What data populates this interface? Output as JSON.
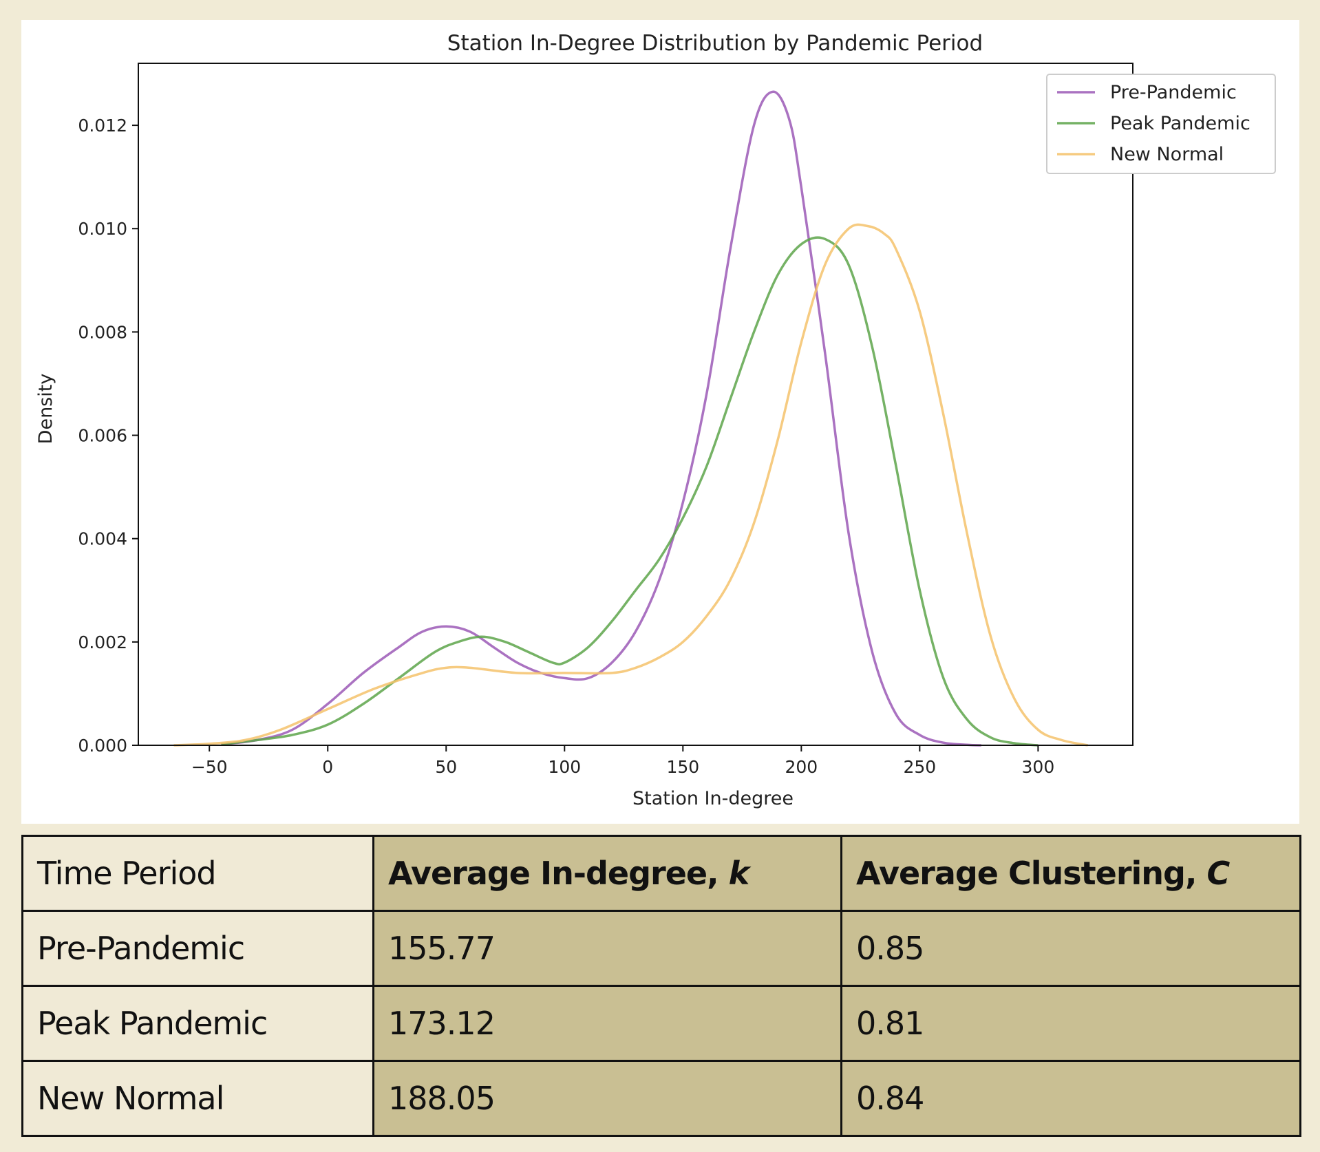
{
  "chart_data": {
    "type": "line",
    "title": "Station In-Degree Distribution by Pandemic Period",
    "xlabel": "Station In-degree",
    "ylabel": "Density",
    "xlim": [
      -80,
      340
    ],
    "ylim": [
      0,
      0.0132
    ],
    "xticks": [
      -50,
      0,
      50,
      100,
      150,
      200,
      250,
      300
    ],
    "xtick_labels": [
      "−50",
      "0",
      "50",
      "100",
      "150",
      "200",
      "250",
      "300"
    ],
    "yticks": [
      0,
      0.002,
      0.004,
      0.006,
      0.008,
      0.01,
      0.012
    ],
    "ytick_labels": [
      "0.000",
      "0.002",
      "0.004",
      "0.006",
      "0.008",
      "0.010",
      "0.012"
    ],
    "grid": false,
    "legend": "top-right",
    "series": [
      {
        "name": "Pre-Pandemic",
        "color": "#9b59b6",
        "x": [
          -45,
          -30,
          -15,
          0,
          15,
          30,
          40,
          50,
          60,
          70,
          80,
          90,
          100,
          110,
          120,
          130,
          140,
          150,
          160,
          170,
          180,
          188,
          195,
          200,
          210,
          220,
          230,
          240,
          250,
          260,
          270,
          276
        ],
        "y": [
          2e-05,
          0.0001,
          0.0003,
          0.0008,
          0.0014,
          0.0019,
          0.0022,
          0.0023,
          0.0022,
          0.0019,
          0.0016,
          0.0014,
          0.0013,
          0.0013,
          0.0016,
          0.0022,
          0.0032,
          0.0047,
          0.0068,
          0.0096,
          0.012,
          0.01265,
          0.0121,
          0.0108,
          0.0076,
          0.0041,
          0.0018,
          0.0006,
          0.0002,
          5e-05,
          1e-05,
          0.0
        ]
      },
      {
        "name": "Peak Pandemic",
        "color": "#5da54a",
        "x": [
          -45,
          -30,
          -15,
          0,
          15,
          30,
          45,
          55,
          65,
          75,
          85,
          95,
          100,
          110,
          120,
          130,
          140,
          150,
          160,
          170,
          180,
          190,
          200,
          210,
          220,
          230,
          240,
          250,
          260,
          270,
          280,
          290,
          300
        ],
        "y": [
          2e-05,
          0.0001,
          0.0002,
          0.0004,
          0.0008,
          0.0013,
          0.0018,
          0.002,
          0.0021,
          0.002,
          0.0018,
          0.0016,
          0.0016,
          0.0019,
          0.0024,
          0.003,
          0.0036,
          0.0044,
          0.0054,
          0.0067,
          0.008,
          0.0091,
          0.0097,
          0.0098,
          0.0093,
          0.0077,
          0.0054,
          0.003,
          0.0013,
          0.0005,
          0.00015,
          4e-05,
          0.0
        ]
      },
      {
        "name": "New Normal",
        "color": "#f5c26b",
        "x": [
          -65,
          -50,
          -35,
          -20,
          0,
          20,
          40,
          50,
          60,
          80,
          100,
          120,
          130,
          140,
          150,
          160,
          170,
          180,
          190,
          200,
          210,
          220,
          228,
          235,
          240,
          250,
          260,
          270,
          280,
          290,
          300,
          310,
          321
        ],
        "y": [
          0.0,
          3e-05,
          0.0001,
          0.0003,
          0.0007,
          0.0011,
          0.0014,
          0.0015,
          0.0015,
          0.0014,
          0.0014,
          0.0014,
          0.0015,
          0.0017,
          0.002,
          0.0025,
          0.0032,
          0.0043,
          0.0059,
          0.0078,
          0.0093,
          0.01,
          0.01005,
          0.0099,
          0.0096,
          0.0084,
          0.0064,
          0.0041,
          0.0021,
          0.0009,
          0.0003,
          0.0001,
          0.0
        ]
      }
    ]
  },
  "table": {
    "headers": [
      "Time Period",
      "Average In-degree,",
      "Average Clustering,"
    ],
    "header_vars": [
      "k",
      "C"
    ],
    "rows": [
      [
        "Pre-Pandemic",
        "155.77",
        "0.85"
      ],
      [
        "Peak Pandemic",
        "173.12",
        "0.81"
      ],
      [
        "New Normal",
        "188.05",
        "0.84"
      ]
    ]
  }
}
